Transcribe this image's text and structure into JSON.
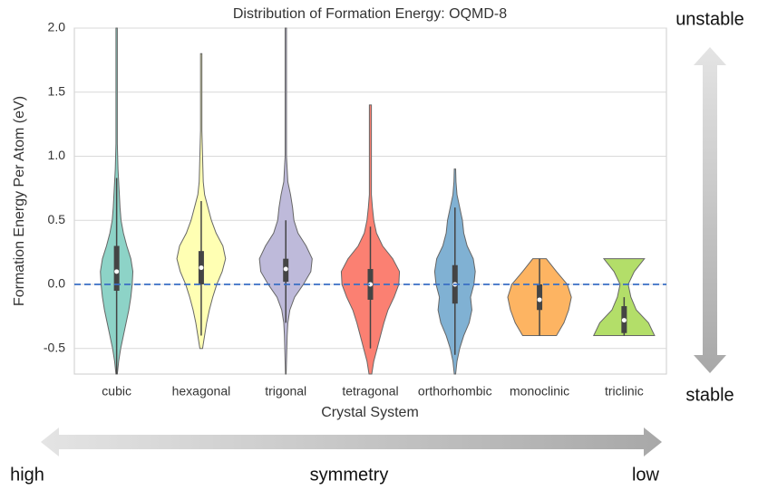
{
  "chart_data": {
    "type": "violin",
    "title": "Distribution of Formation Energy: OQMD-8",
    "x_label": "Crystal System",
    "y_label": "Formation Energy Per Atom (eV)",
    "ylim": [
      -0.7,
      2.0
    ],
    "yticks": [
      -0.5,
      {
        "value": 0,
        "label": "0.0"
      },
      0.5,
      {
        "value": 1,
        "label": "1.0"
      },
      1.5,
      {
        "value": 2,
        "label": "2.0"
      }
    ],
    "grid": true,
    "hline": 0,
    "hline_color": "#3a6fc4",
    "density_y": [
      -0.7,
      -0.6,
      -0.5,
      -0.4,
      -0.3,
      -0.2,
      -0.1,
      0,
      0.1,
      0.2,
      0.3,
      0.4,
      0.5,
      0.6,
      0.7,
      0.8,
      0.9,
      1.0,
      1.1,
      1.2,
      1.3,
      1.4,
      1.5,
      1.6,
      1.7,
      1.8,
      1.9,
      2.0
    ],
    "series": [
      {
        "name": "cubic",
        "color": "#8dd3c7",
        "box": [
          -0.7,
          -0.05,
          0.1,
          0.3,
          0.83
        ],
        "density": [
          0.02,
          0.06,
          0.12,
          0.2,
          0.28,
          0.36,
          0.42,
          0.46,
          0.48,
          0.42,
          0.3,
          0.2,
          0.13,
          0.1,
          0.08,
          0.06,
          0.04,
          0.03,
          0.02,
          0.02,
          0.02,
          0.02,
          0.02,
          0.02,
          0.02,
          0.02,
          0.02,
          0.02
        ]
      },
      {
        "name": "hexagonal",
        "color": "#ffffb3",
        "box": [
          -0.4,
          0,
          0.13,
          0.26,
          0.65
        ],
        "density": [
          null,
          null,
          0.04,
          0.1,
          0.16,
          0.24,
          0.34,
          0.46,
          0.62,
          0.72,
          0.64,
          0.44,
          0.3,
          0.2,
          0.1,
          0.06,
          0.05,
          0.04,
          0.03,
          0.02,
          0.02,
          0.02,
          0.02,
          0.02,
          0.02,
          0.02,
          null,
          null
        ]
      },
      {
        "name": "trigonal",
        "color": "#bebada",
        "box": [
          -0.3,
          0.02,
          0.12,
          0.2,
          0.5
        ],
        "density": [
          0.01,
          0.02,
          0.03,
          0.04,
          0.06,
          0.12,
          0.26,
          0.52,
          0.74,
          0.78,
          0.6,
          0.36,
          0.24,
          0.2,
          0.14,
          0.06,
          0.04,
          0.02,
          0.02,
          0.02,
          0.02,
          0.02,
          0.02,
          0.02,
          0.02,
          0.02,
          0.02,
          0.02
        ]
      },
      {
        "name": "tetragonal",
        "color": "#fb8072",
        "box": [
          -0.5,
          -0.12,
          0,
          0.12,
          0.45
        ],
        "density": [
          0.04,
          0.1,
          0.2,
          0.3,
          0.4,
          0.52,
          0.7,
          0.84,
          0.86,
          0.66,
          0.36,
          0.18,
          0.1,
          0.06,
          0.03,
          0.03,
          0.03,
          0.03,
          0.03,
          0.03,
          0.03,
          0.03,
          null,
          null,
          null,
          null,
          null,
          null
        ]
      },
      {
        "name": "orthorhombic",
        "color": "#80b1d3",
        "box": [
          -0.55,
          -0.15,
          0,
          0.15,
          0.6
        ],
        "density": [
          0.02,
          0.06,
          0.14,
          0.26,
          0.42,
          0.5,
          0.46,
          0.56,
          0.6,
          0.54,
          0.36,
          0.26,
          0.22,
          0.14,
          0.06,
          0.03,
          0.02,
          null,
          null,
          null,
          null,
          null,
          null,
          null,
          null,
          null,
          null,
          null
        ]
      },
      {
        "name": "monoclinic",
        "color": "#fdb462",
        "box": [
          -0.4,
          -0.2,
          -0.12,
          0,
          0.2
        ],
        "density": [
          null,
          null,
          null,
          0.5,
          0.72,
          0.86,
          0.94,
          0.82,
          0.5,
          0.2,
          null,
          null,
          null,
          null,
          null,
          null,
          null,
          null,
          null,
          null,
          null,
          null,
          null,
          null,
          null,
          null,
          null,
          null
        ]
      },
      {
        "name": "triclinic",
        "color": "#b3de69",
        "box": [
          -0.4,
          -0.38,
          -0.28,
          -0.17,
          -0.1
        ],
        "density": [
          null,
          null,
          null,
          0.9,
          0.72,
          0.36,
          0.2,
          0.12,
          0.3,
          0.6,
          null,
          null,
          null,
          null,
          null,
          null,
          null,
          null,
          null,
          null,
          null,
          null,
          null,
          null,
          null,
          null,
          null,
          null
        ]
      }
    ]
  },
  "annotations": {
    "top": "unstable",
    "bottom": "stable",
    "left": "high",
    "middle": "symmetry",
    "right": "low"
  }
}
